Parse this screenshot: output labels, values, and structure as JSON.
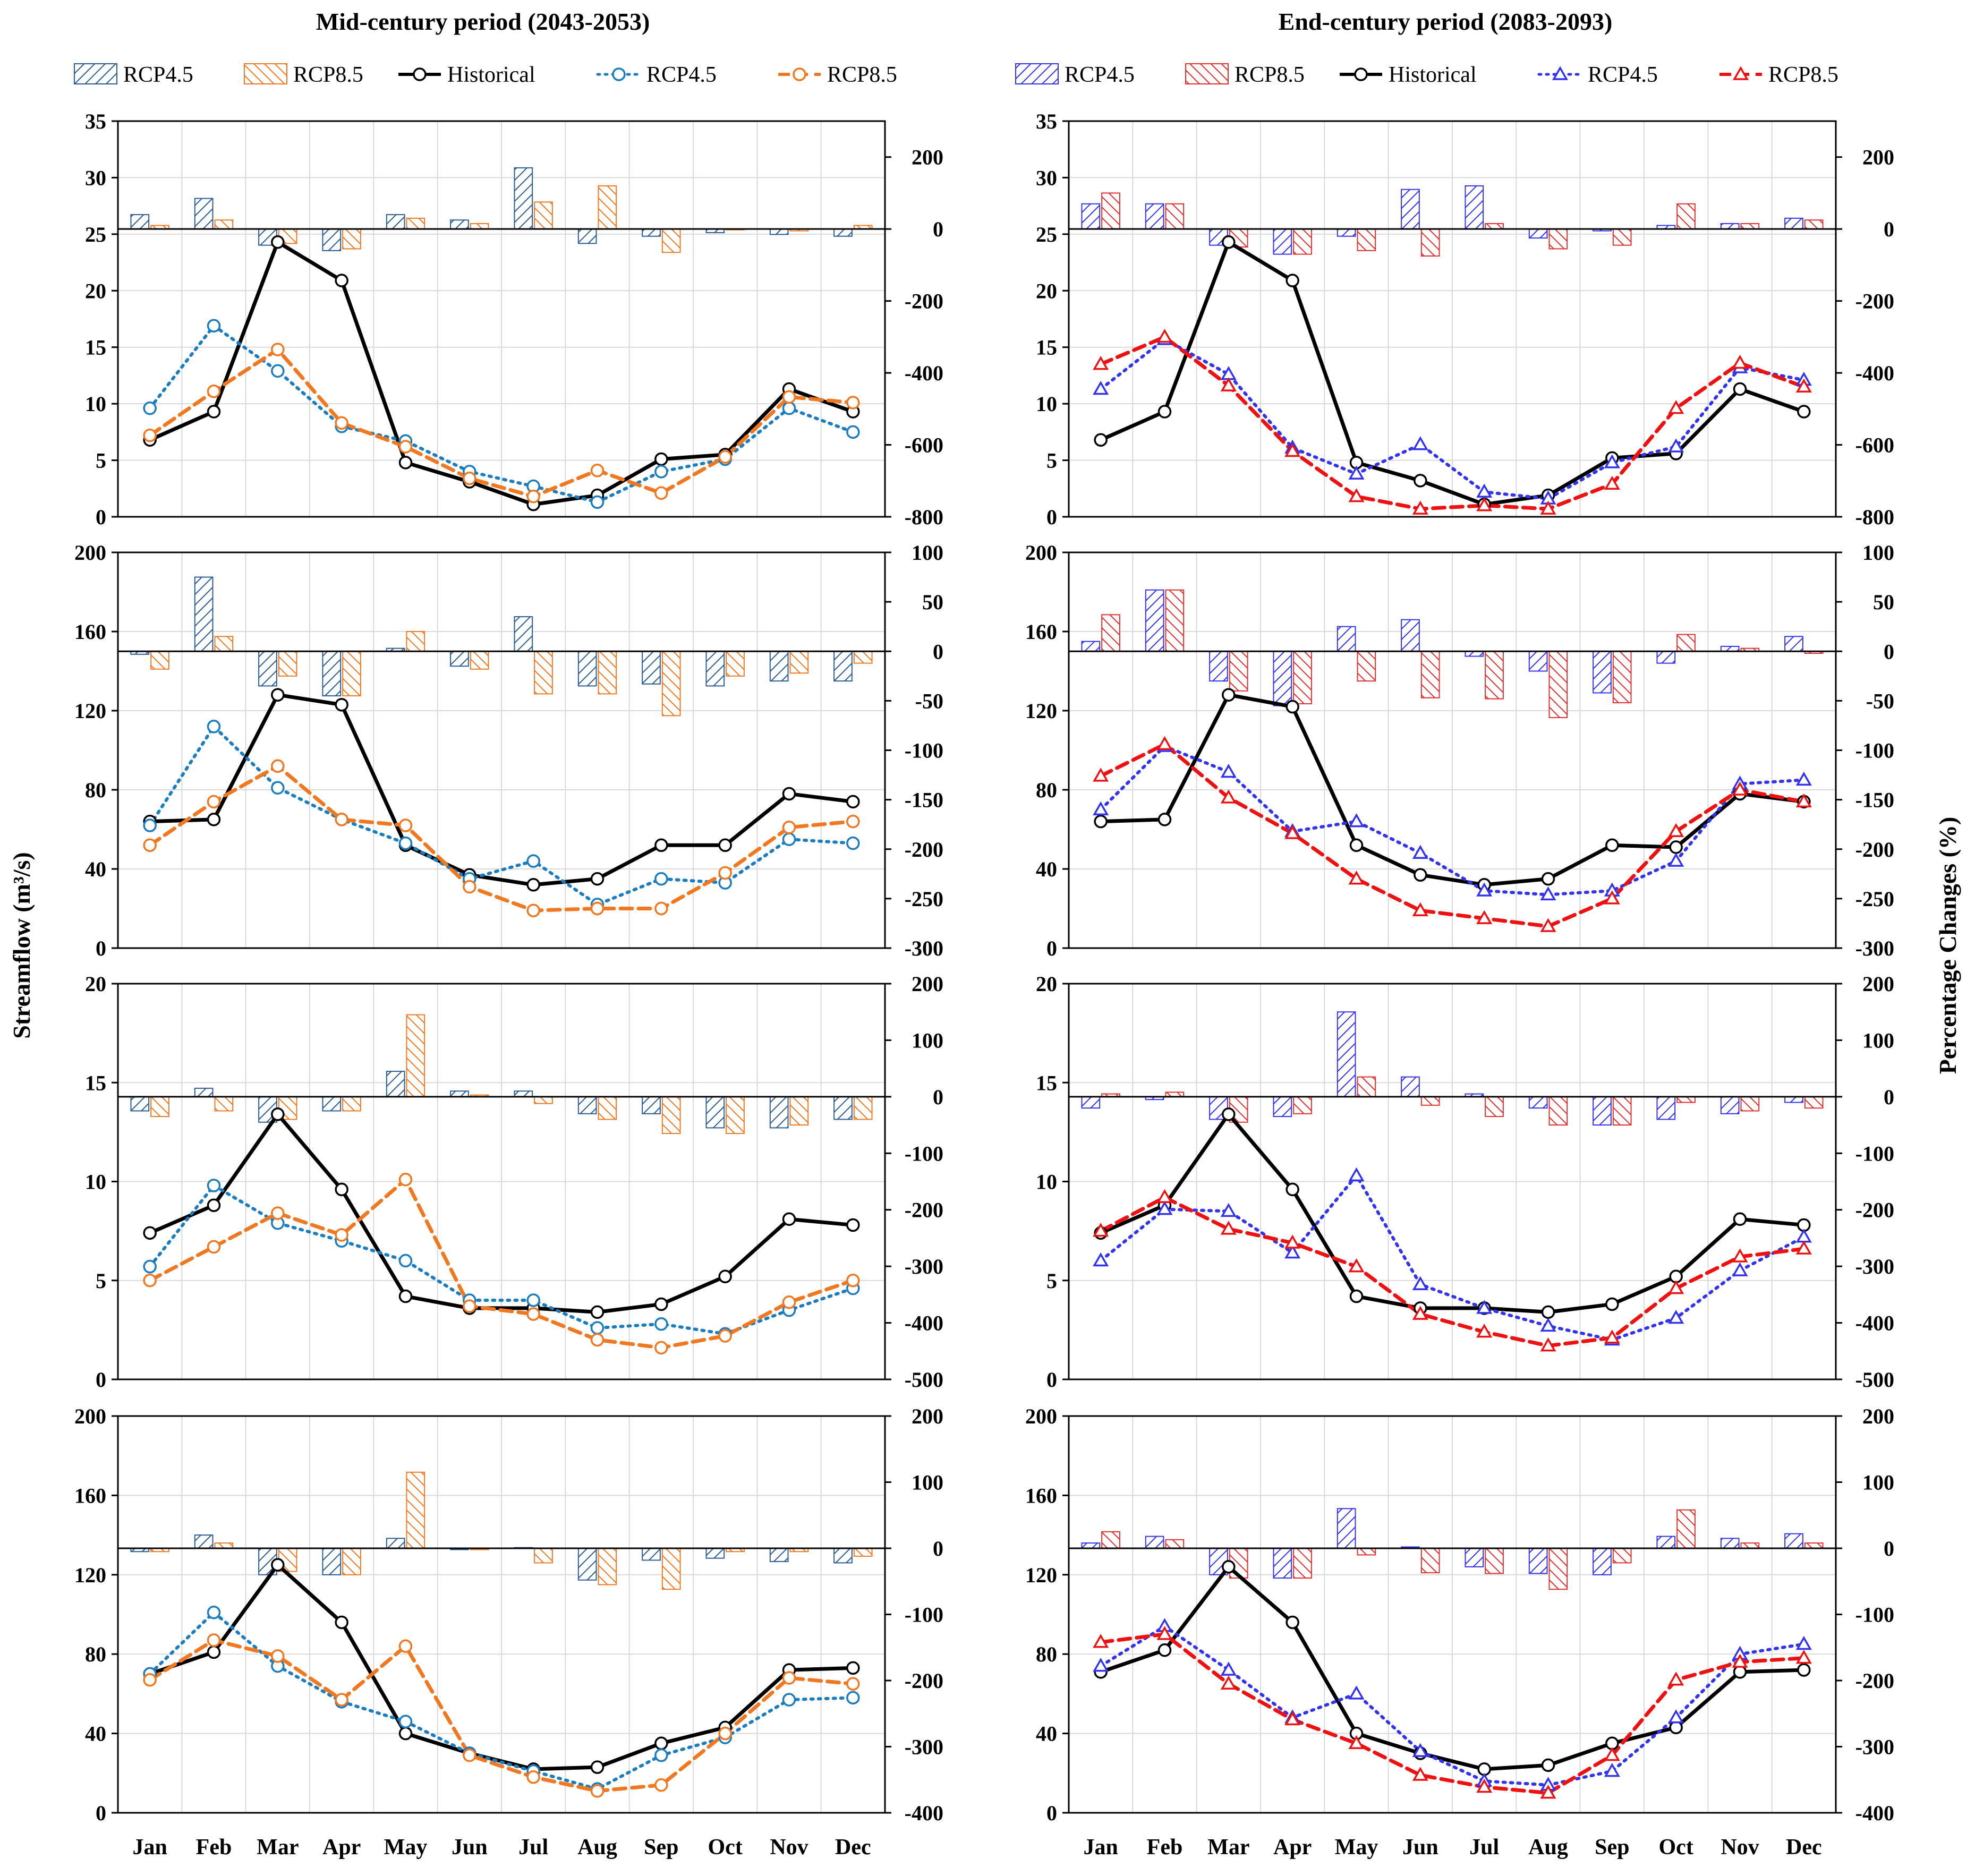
{
  "figure": {
    "ylabel_left": "Streamflow  (m³/s)",
    "ylabel_right": "Percentage Changes (%)",
    "colors": {
      "hist": "#000000",
      "mid45": "#1a7dc0",
      "mid85": "#f07820",
      "end45": "#3333ee",
      "end85": "#ee1111",
      "mid45_bar": "#2b5c94",
      "end45_bar": "#3333ee",
      "end85_bar": "#e03030",
      "mid85_bar": "#f07820",
      "grid": "#d9d9d9"
    }
  },
  "columns": [
    {
      "title": "Mid-century period (2043-2053)",
      "legend": [
        "RCP4.5",
        "RCP8.5",
        "Historical",
        "RCP4.5",
        "RCP8.5"
      ],
      "line_marker": "circle"
    },
    {
      "title": "End-century period (2083-2093)",
      "legend": [
        "RCP4.5",
        "RCP8.5",
        "Historical",
        "RCP4.5",
        "RCP8.5"
      ],
      "line_marker": "triangle"
    }
  ],
  "chart_data": [
    {
      "type": "bar+line",
      "column": 0,
      "row": 0,
      "categories": [
        "Jan",
        "Feb",
        "Mar",
        "Apr",
        "May",
        "Jun",
        "Jul",
        "Aug",
        "Sep",
        "Oct",
        "Nov",
        "Dec"
      ],
      "ylim_left": [
        0,
        35
      ],
      "yticks_left": [
        0,
        5,
        10,
        15,
        20,
        25,
        30,
        35
      ],
      "ylim_right": [
        -800,
        300
      ],
      "yticks_right": [
        -800,
        -600,
        -400,
        -200,
        0,
        200
      ],
      "bars": [
        {
          "name": "RCP4.5",
          "values": [
            40,
            85,
            -45,
            -60,
            40,
            25,
            170,
            -40,
            -20,
            -10,
            -15,
            -20
          ]
        },
        {
          "name": "RCP8.5",
          "values": [
            10,
            25,
            -40,
            -55,
            30,
            15,
            75,
            120,
            -65,
            -2,
            -5,
            10
          ]
        }
      ],
      "lines": [
        {
          "name": "Historical",
          "values": [
            6.8,
            9.3,
            24.3,
            20.9,
            4.8,
            3.1,
            1.1,
            1.9,
            5.1,
            5.5,
            11.3,
            9.3
          ]
        },
        {
          "name": "RCP4.5",
          "values": [
            9.6,
            16.9,
            12.9,
            8.0,
            6.7,
            4.0,
            2.7,
            1.3,
            4.0,
            5.1,
            9.6,
            7.5
          ]
        },
        {
          "name": "RCP8.5",
          "values": [
            7.2,
            11.1,
            14.8,
            8.3,
            6.2,
            3.4,
            1.8,
            4.1,
            2.1,
            5.3,
            10.6,
            10.1
          ]
        }
      ]
    },
    {
      "type": "bar+line",
      "column": 1,
      "row": 0,
      "categories": [
        "Jan",
        "Feb",
        "Mar",
        "Apr",
        "May",
        "Jun",
        "Jul",
        "Aug",
        "Sep",
        "Oct",
        "Nov",
        "Dec"
      ],
      "ylim_left": [
        0,
        35
      ],
      "yticks_left": [
        0,
        5,
        10,
        15,
        20,
        25,
        30,
        35
      ],
      "ylim_right": [
        -800,
        300
      ],
      "yticks_right": [
        -800,
        -600,
        -400,
        -200,
        0,
        200
      ],
      "bars": [
        {
          "name": "RCP4.5",
          "values": [
            70,
            70,
            -45,
            -70,
            -20,
            110,
            120,
            -25,
            -5,
            10,
            15,
            30
          ]
        },
        {
          "name": "RCP8.5",
          "values": [
            100,
            70,
            -50,
            -70,
            -60,
            -75,
            15,
            -55,
            -45,
            70,
            15,
            25
          ]
        }
      ],
      "lines": [
        {
          "name": "Historical",
          "values": [
            6.8,
            9.3,
            24.3,
            20.9,
            4.8,
            3.2,
            1.1,
            1.9,
            5.2,
            5.6,
            11.3,
            9.3
          ]
        },
        {
          "name": "RCP4.5",
          "values": [
            11.3,
            15.7,
            12.6,
            6.1,
            3.8,
            6.4,
            2.2,
            1.6,
            4.8,
            6.2,
            13.2,
            12.1
          ]
        },
        {
          "name": "RCP8.5",
          "values": [
            13.5,
            15.9,
            11.6,
            5.8,
            1.8,
            0.7,
            1.0,
            0.7,
            2.9,
            9.6,
            13.6,
            11.5
          ]
        }
      ]
    },
    {
      "type": "bar+line",
      "column": 0,
      "row": 1,
      "categories": [
        "Jan",
        "Feb",
        "Mar",
        "Apr",
        "May",
        "Jun",
        "Jul",
        "Aug",
        "Sep",
        "Oct",
        "Nov",
        "Dec"
      ],
      "ylim_left": [
        0,
        200
      ],
      "yticks_left": [
        0,
        40,
        80,
        120,
        160,
        200
      ],
      "ylim_right": [
        -300,
        100
      ],
      "yticks_right": [
        -300,
        -250,
        -200,
        -150,
        -100,
        -50,
        0,
        50,
        100
      ],
      "bars": [
        {
          "name": "RCP4.5",
          "values": [
            -3,
            75,
            -35,
            -45,
            3,
            -15,
            35,
            -35,
            -33,
            -35,
            -30,
            -30
          ]
        },
        {
          "name": "RCP8.5",
          "values": [
            -18,
            15,
            -25,
            -45,
            20,
            -18,
            -43,
            -43,
            -65,
            -25,
            -22,
            -12
          ]
        }
      ],
      "lines": [
        {
          "name": "Historical",
          "values": [
            64,
            65,
            128,
            123,
            52,
            37,
            32,
            35,
            52,
            52,
            78,
            74
          ]
        },
        {
          "name": "RCP4.5",
          "values": [
            62,
            112,
            81,
            65,
            53,
            35,
            44,
            22,
            35,
            33,
            55,
            53
          ]
        },
        {
          "name": "RCP8.5",
          "values": [
            52,
            74,
            92,
            65,
            62,
            31,
            19,
            20,
            20,
            38,
            61,
            64
          ]
        }
      ]
    },
    {
      "type": "bar+line",
      "column": 1,
      "row": 1,
      "categories": [
        "Jan",
        "Feb",
        "Mar",
        "Apr",
        "May",
        "Jun",
        "Jul",
        "Aug",
        "Sep",
        "Oct",
        "Nov",
        "Dec"
      ],
      "ylim_left": [
        0,
        200
      ],
      "yticks_left": [
        0,
        40,
        80,
        120,
        160,
        200
      ],
      "ylim_right": [
        -300,
        100
      ],
      "yticks_right": [
        -300,
        -250,
        -200,
        -150,
        -100,
        -50,
        0,
        50,
        100
      ],
      "bars": [
        {
          "name": "RCP4.5",
          "values": [
            10,
            62,
            -30,
            -55,
            25,
            32,
            -5,
            -20,
            -42,
            -12,
            5,
            15
          ]
        },
        {
          "name": "RCP8.5",
          "values": [
            37,
            62,
            -40,
            -53,
            -30,
            -47,
            -48,
            -67,
            -52,
            17,
            3,
            -2
          ]
        }
      ],
      "lines": [
        {
          "name": "Historical",
          "values": [
            64,
            65,
            128,
            122,
            52,
            37,
            32,
            35,
            52,
            51,
            78,
            74
          ]
        },
        {
          "name": "RCP4.5",
          "values": [
            70,
            102,
            89,
            59,
            64,
            48,
            29,
            27,
            29,
            44,
            83,
            85
          ]
        },
        {
          "name": "RCP8.5",
          "values": [
            87,
            103,
            76,
            58,
            35,
            19,
            15,
            11,
            25,
            59,
            80,
            74
          ]
        }
      ]
    },
    {
      "type": "bar+line",
      "column": 0,
      "row": 2,
      "categories": [
        "Jan",
        "Feb",
        "Mar",
        "Apr",
        "May",
        "Jun",
        "Jul",
        "Aug",
        "Sep",
        "Oct",
        "Nov",
        "Dec"
      ],
      "ylim_left": [
        0,
        20
      ],
      "yticks_left": [
        0,
        5,
        10,
        15,
        20
      ],
      "ylim_right": [
        -500,
        200
      ],
      "yticks_right": [
        -500,
        -400,
        -300,
        -200,
        -100,
        0,
        100,
        200
      ],
      "bars": [
        {
          "name": "RCP4.5",
          "values": [
            -25,
            15,
            -45,
            -25,
            45,
            10,
            10,
            -30,
            -30,
            -55,
            -55,
            -40
          ]
        },
        {
          "name": "RCP8.5",
          "values": [
            -35,
            -25,
            -40,
            -25,
            145,
            3,
            -12,
            -40,
            -65,
            -65,
            -50,
            -40
          ]
        }
      ],
      "lines": [
        {
          "name": "Historical",
          "values": [
            7.4,
            8.8,
            13.4,
            9.6,
            4.2,
            3.6,
            3.6,
            3.4,
            3.8,
            5.2,
            8.1,
            7.8
          ]
        },
        {
          "name": "RCP4.5",
          "values": [
            5.7,
            9.8,
            7.9,
            7.0,
            6.0,
            4.0,
            4.0,
            2.6,
            2.8,
            2.3,
            3.5,
            4.6
          ]
        },
        {
          "name": "RCP8.5",
          "values": [
            5.0,
            6.7,
            8.4,
            7.3,
            10.1,
            3.7,
            3.3,
            2.0,
            1.6,
            2.2,
            3.9,
            5.0
          ]
        }
      ]
    },
    {
      "type": "bar+line",
      "column": 1,
      "row": 2,
      "categories": [
        "Jan",
        "Feb",
        "Mar",
        "Apr",
        "May",
        "Jun",
        "Jul",
        "Aug",
        "Sep",
        "Oct",
        "Nov",
        "Dec"
      ],
      "ylim_left": [
        0,
        20
      ],
      "yticks_left": [
        0,
        5,
        10,
        15,
        20
      ],
      "ylim_right": [
        -500,
        200
      ],
      "yticks_right": [
        -500,
        -400,
        -300,
        -200,
        -100,
        0,
        100,
        200
      ],
      "bars": [
        {
          "name": "RCP4.5",
          "values": [
            -20,
            -5,
            -40,
            -35,
            150,
            35,
            5,
            -20,
            -50,
            -40,
            -30,
            -10
          ]
        },
        {
          "name": "RCP8.5",
          "values": [
            5,
            8,
            -45,
            -30,
            35,
            -15,
            -35,
            -50,
            -50,
            -10,
            -25,
            -20
          ]
        }
      ],
      "lines": [
        {
          "name": "Historical",
          "values": [
            7.4,
            8.8,
            13.4,
            9.6,
            4.2,
            3.6,
            3.6,
            3.4,
            3.8,
            5.2,
            8.1,
            7.8
          ]
        },
        {
          "name": "RCP4.5",
          "values": [
            6.0,
            8.6,
            8.5,
            6.4,
            10.3,
            4.8,
            3.6,
            2.7,
            2.0,
            3.1,
            5.5,
            7.2
          ]
        },
        {
          "name": "RCP8.5",
          "values": [
            7.5,
            9.2,
            7.6,
            6.9,
            5.7,
            3.3,
            2.4,
            1.7,
            2.1,
            4.6,
            6.2,
            6.6
          ]
        }
      ]
    },
    {
      "type": "bar+line",
      "column": 0,
      "row": 3,
      "categories": [
        "Jan",
        "Feb",
        "Mar",
        "Apr",
        "May",
        "Jun",
        "Jul",
        "Aug",
        "Sep",
        "Oct",
        "Nov",
        "Dec"
      ],
      "ylim_left": [
        0,
        200
      ],
      "yticks_left": [
        0,
        40,
        80,
        120,
        160,
        200
      ],
      "ylim_right": [
        -400,
        200
      ],
      "yticks_right": [
        -400,
        -300,
        -200,
        -100,
        0,
        100,
        200
      ],
      "bars": [
        {
          "name": "RCP4.5",
          "values": [
            -5,
            20,
            -40,
            -40,
            15,
            -2,
            1,
            -48,
            -18,
            -15,
            -20,
            -22
          ]
        },
        {
          "name": "RCP8.5",
          "values": [
            -5,
            8,
            -35,
            -40,
            115,
            -2,
            -22,
            -55,
            -62,
            -5,
            -5,
            -12
          ]
        }
      ],
      "lines": [
        {
          "name": "Historical",
          "values": [
            70,
            81,
            125,
            96,
            40,
            30,
            22,
            23,
            35,
            43,
            72,
            73
          ]
        },
        {
          "name": "RCP4.5",
          "values": [
            70,
            101,
            74,
            56,
            46,
            30,
            21,
            12,
            29,
            38,
            57,
            58
          ]
        },
        {
          "name": "RCP8.5",
          "values": [
            67,
            87,
            79,
            57,
            84,
            29,
            18,
            11,
            14,
            40,
            68,
            65
          ]
        }
      ]
    },
    {
      "type": "bar+line",
      "column": 1,
      "row": 3,
      "categories": [
        "Jan",
        "Feb",
        "Mar",
        "Apr",
        "May",
        "Jun",
        "Jul",
        "Aug",
        "Sep",
        "Oct",
        "Nov",
        "Dec"
      ],
      "ylim_left": [
        0,
        200
      ],
      "yticks_left": [
        0,
        40,
        80,
        120,
        160,
        200
      ],
      "ylim_right": [
        -400,
        200
      ],
      "yticks_right": [
        -400,
        -300,
        -200,
        -100,
        0,
        100,
        200
      ],
      "bars": [
        {
          "name": "RCP4.5",
          "values": [
            8,
            18,
            -40,
            -45,
            60,
            2,
            -28,
            -38,
            -40,
            18,
            15,
            22
          ]
        },
        {
          "name": "RCP8.5",
          "values": [
            25,
            13,
            -45,
            -45,
            -10,
            -37,
            -38,
            -62,
            -22,
            58,
            8,
            8
          ]
        }
      ],
      "lines": [
        {
          "name": "Historical",
          "values": [
            71,
            82,
            124,
            96,
            40,
            30,
            22,
            24,
            35,
            43,
            71,
            72
          ]
        },
        {
          "name": "RCP4.5",
          "values": [
            74,
            94,
            72,
            48,
            60,
            31,
            16,
            14,
            21,
            48,
            80,
            85
          ]
        },
        {
          "name": "RCP8.5",
          "values": [
            86,
            90,
            65,
            47,
            35,
            19,
            13,
            10,
            29,
            67,
            76,
            78
          ]
        }
      ]
    }
  ]
}
